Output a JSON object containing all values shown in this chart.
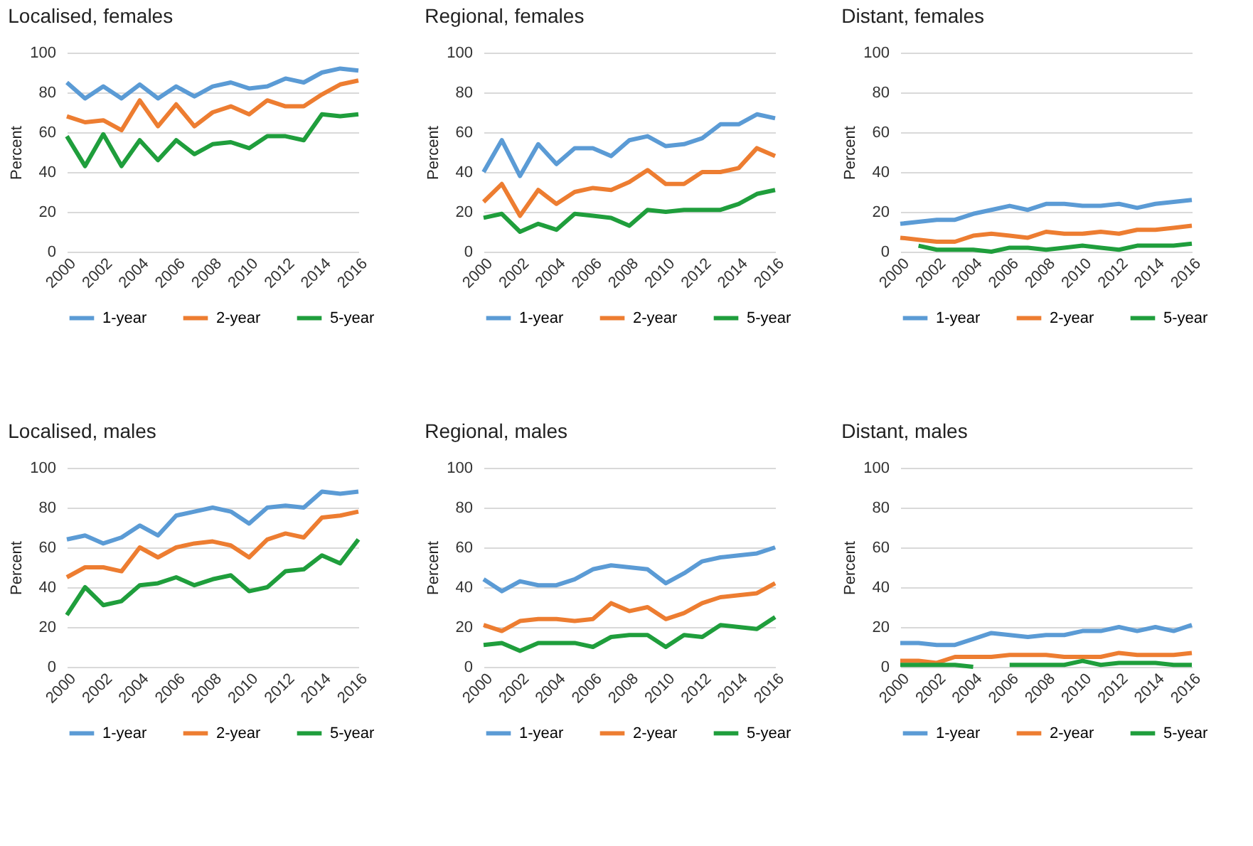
{
  "chart_data": [
    {
      "type": "line",
      "title": "Localised, females",
      "ylabel": "Percent",
      "x": [
        2000,
        2001,
        2002,
        2003,
        2004,
        2005,
        2006,
        2007,
        2008,
        2009,
        2010,
        2011,
        2012,
        2013,
        2014,
        2015,
        2016
      ],
      "xlim": [
        2000,
        2016
      ],
      "xticks": [
        2000,
        2002,
        2004,
        2006,
        2008,
        2010,
        2012,
        2014,
        2016
      ],
      "ylim": [
        0,
        100
      ],
      "yticks": [
        0,
        20,
        40,
        60,
        80,
        100
      ],
      "grid": "y",
      "legend": "bottom",
      "series": [
        {
          "name": "1-year",
          "color": "#5b9bd5",
          "values": [
            85,
            77,
            83,
            77,
            84,
            77,
            83,
            78,
            83,
            85,
            82,
            83,
            87,
            85,
            90,
            92,
            91
          ]
        },
        {
          "name": "2-year",
          "color": "#ed7d31",
          "values": [
            68,
            65,
            66,
            61,
            76,
            63,
            74,
            63,
            70,
            73,
            69,
            76,
            73,
            73,
            79,
            84,
            86
          ]
        },
        {
          "name": "5-year",
          "color": "#1f9e3c",
          "values": [
            58,
            43,
            59,
            43,
            56,
            46,
            56,
            49,
            54,
            55,
            52,
            58,
            58,
            56,
            69,
            68,
            69
          ]
        }
      ]
    },
    {
      "type": "line",
      "title": "Regional, females",
      "ylabel": "Percent",
      "x": [
        2000,
        2001,
        2002,
        2003,
        2004,
        2005,
        2006,
        2007,
        2008,
        2009,
        2010,
        2011,
        2012,
        2013,
        2014,
        2015,
        2016
      ],
      "xlim": [
        2000,
        2016
      ],
      "xticks": [
        2000,
        2002,
        2004,
        2006,
        2008,
        2010,
        2012,
        2014,
        2016
      ],
      "ylim": [
        0,
        100
      ],
      "yticks": [
        0,
        20,
        40,
        60,
        80,
        100
      ],
      "grid": "y",
      "legend": "bottom",
      "series": [
        {
          "name": "1-year",
          "color": "#5b9bd5",
          "values": [
            40,
            56,
            38,
            54,
            44,
            52,
            52,
            48,
            56,
            58,
            53,
            54,
            57,
            64,
            64,
            69,
            67
          ]
        },
        {
          "name": "2-year",
          "color": "#ed7d31",
          "values": [
            25,
            34,
            18,
            31,
            24,
            30,
            32,
            31,
            35,
            41,
            34,
            34,
            40,
            40,
            42,
            52,
            48
          ]
        },
        {
          "name": "5-year",
          "color": "#1f9e3c",
          "values": [
            17,
            19,
            10,
            14,
            11,
            19,
            18,
            17,
            13,
            21,
            20,
            21,
            21,
            21,
            24,
            29,
            31
          ]
        }
      ]
    },
    {
      "type": "line",
      "title": "Distant, females",
      "ylabel": "Percent",
      "x": [
        2000,
        2001,
        2002,
        2003,
        2004,
        2005,
        2006,
        2007,
        2008,
        2009,
        2010,
        2011,
        2012,
        2013,
        2014,
        2015,
        2016
      ],
      "xlim": [
        2000,
        2016
      ],
      "xticks": [
        2000,
        2002,
        2004,
        2006,
        2008,
        2010,
        2012,
        2014,
        2016
      ],
      "ylim": [
        0,
        100
      ],
      "yticks": [
        0,
        20,
        40,
        60,
        80,
        100
      ],
      "grid": "y",
      "legend": "bottom",
      "series": [
        {
          "name": "1-year",
          "color": "#5b9bd5",
          "values": [
            14,
            15,
            16,
            16,
            19,
            21,
            23,
            21,
            24,
            24,
            23,
            23,
            24,
            22,
            24,
            25,
            26
          ]
        },
        {
          "name": "2-year",
          "color": "#ed7d31",
          "values": [
            7,
            6,
            5,
            5,
            8,
            9,
            8,
            7,
            10,
            9,
            9,
            10,
            9,
            11,
            11,
            12,
            13
          ]
        },
        {
          "name": "5-year",
          "color": "#1f9e3c",
          "values": [
            null,
            3,
            1,
            1,
            1,
            0,
            2,
            2,
            1,
            2,
            3,
            2,
            1,
            3,
            3,
            3,
            4
          ]
        }
      ]
    },
    {
      "type": "line",
      "title": "Localised, males",
      "ylabel": "Percent",
      "x": [
        2000,
        2001,
        2002,
        2003,
        2004,
        2005,
        2006,
        2007,
        2008,
        2009,
        2010,
        2011,
        2012,
        2013,
        2014,
        2015,
        2016
      ],
      "xlim": [
        2000,
        2016
      ],
      "xticks": [
        2000,
        2002,
        2004,
        2006,
        2008,
        2010,
        2012,
        2014,
        2016
      ],
      "ylim": [
        0,
        100
      ],
      "yticks": [
        0,
        20,
        40,
        60,
        80,
        100
      ],
      "grid": "y",
      "legend": "bottom",
      "series": [
        {
          "name": "1-year",
          "color": "#5b9bd5",
          "values": [
            64,
            66,
            62,
            65,
            71,
            66,
            76,
            78,
            80,
            78,
            72,
            80,
            81,
            80,
            88,
            87,
            88
          ]
        },
        {
          "name": "2-year",
          "color": "#ed7d31",
          "values": [
            45,
            50,
            50,
            48,
            60,
            55,
            60,
            62,
            63,
            61,
            55,
            64,
            67,
            65,
            75,
            76,
            78
          ]
        },
        {
          "name": "5-year",
          "color": "#1f9e3c",
          "values": [
            26,
            40,
            31,
            33,
            41,
            42,
            45,
            41,
            44,
            46,
            38,
            40,
            48,
            49,
            56,
            52,
            64
          ]
        }
      ]
    },
    {
      "type": "line",
      "title": "Regional, males",
      "ylabel": "Percent",
      "x": [
        2000,
        2001,
        2002,
        2003,
        2004,
        2005,
        2006,
        2007,
        2008,
        2009,
        2010,
        2011,
        2012,
        2013,
        2014,
        2015,
        2016
      ],
      "xlim": [
        2000,
        2016
      ],
      "xticks": [
        2000,
        2002,
        2004,
        2006,
        2008,
        2010,
        2012,
        2014,
        2016
      ],
      "ylim": [
        0,
        100
      ],
      "yticks": [
        0,
        20,
        40,
        60,
        80,
        100
      ],
      "grid": "y",
      "legend": "bottom",
      "series": [
        {
          "name": "1-year",
          "color": "#5b9bd5",
          "values": [
            44,
            38,
            43,
            41,
            41,
            44,
            49,
            51,
            50,
            49,
            42,
            47,
            53,
            55,
            56,
            57,
            60
          ]
        },
        {
          "name": "2-year",
          "color": "#ed7d31",
          "values": [
            21,
            18,
            23,
            24,
            24,
            23,
            24,
            32,
            28,
            30,
            24,
            27,
            32,
            35,
            36,
            37,
            42
          ]
        },
        {
          "name": "5-year",
          "color": "#1f9e3c",
          "values": [
            11,
            12,
            8,
            12,
            12,
            12,
            10,
            15,
            16,
            16,
            10,
            16,
            15,
            21,
            20,
            19,
            25
          ]
        }
      ]
    },
    {
      "type": "line",
      "title": "Distant, males",
      "ylabel": "Percent",
      "x": [
        2000,
        2001,
        2002,
        2003,
        2004,
        2005,
        2006,
        2007,
        2008,
        2009,
        2010,
        2011,
        2012,
        2013,
        2014,
        2015,
        2016
      ],
      "xlim": [
        2000,
        2016
      ],
      "xticks": [
        2000,
        2002,
        2004,
        2006,
        2008,
        2010,
        2012,
        2014,
        2016
      ],
      "ylim": [
        0,
        100
      ],
      "yticks": [
        0,
        20,
        40,
        60,
        80,
        100
      ],
      "grid": "y",
      "legend": "bottom",
      "series": [
        {
          "name": "1-year",
          "color": "#5b9bd5",
          "values": [
            12,
            12,
            11,
            11,
            14,
            17,
            16,
            15,
            16,
            16,
            18,
            18,
            20,
            18,
            20,
            18,
            21
          ]
        },
        {
          "name": "2-year",
          "color": "#ed7d31",
          "values": [
            3,
            3,
            2,
            5,
            5,
            5,
            6,
            6,
            6,
            5,
            5,
            5,
            7,
            6,
            6,
            6,
            7
          ]
        },
        {
          "name": "5-year",
          "color": "#1f9e3c",
          "values": [
            1,
            1,
            1,
            1,
            0,
            null,
            1,
            1,
            1,
            1,
            3,
            1,
            2,
            2,
            2,
            1,
            1
          ]
        }
      ]
    }
  ]
}
